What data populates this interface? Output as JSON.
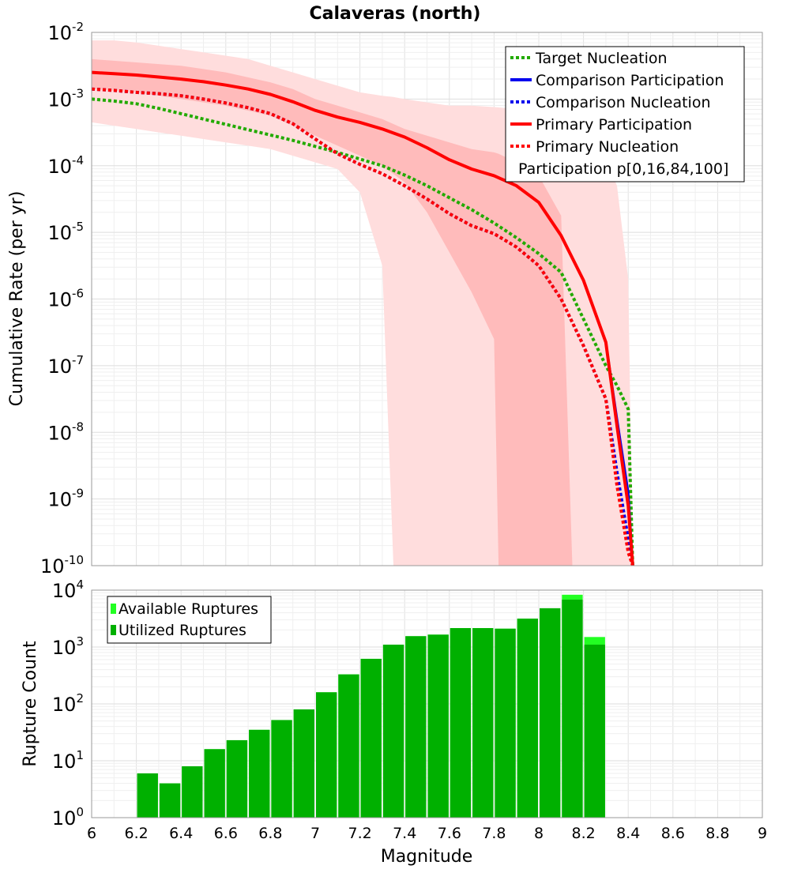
{
  "chart_data": [
    {
      "type": "line",
      "title": "Calaveras (north)",
      "xlabel": "",
      "ylabel": "Cumulative Rate (per yr)",
      "xlim": [
        6,
        9
      ],
      "ylim_exp": [
        -10,
        -2
      ],
      "y_tick_base": "10",
      "y_tick_exps": [
        "-2",
        "-3",
        "-4",
        "-5",
        "-6",
        "-7",
        "-8",
        "-9",
        "-10"
      ],
      "y_tick_values": [
        -2,
        -3,
        -4,
        -5,
        -6,
        -7,
        -8,
        -9,
        -10
      ],
      "grid": true,
      "legend_position": "top-right",
      "bands": [
        {
          "name": "Participation p[0,100]",
          "color": "#ffdddd",
          "x": [
            6.0,
            6.1,
            6.2,
            6.3,
            6.4,
            6.5,
            6.6,
            6.7,
            6.8,
            6.9,
            7.0,
            7.1,
            7.2,
            7.3,
            7.35,
            7.4,
            7.5,
            7.6,
            7.7,
            7.8,
            7.9,
            8.0,
            8.1,
            8.2,
            8.3,
            8.35,
            8.4,
            8.42
          ],
          "upper": [
            -2.12,
            -2.12,
            -2.15,
            -2.2,
            -2.25,
            -2.3,
            -2.35,
            -2.4,
            -2.5,
            -2.6,
            -2.7,
            -2.8,
            -2.9,
            -2.95,
            -2.97,
            -3.0,
            -3.05,
            -3.1,
            -3.1,
            -3.12,
            -3.15,
            -3.2,
            -3.4,
            -3.5,
            -3.9,
            -4.3,
            -5.7,
            -10
          ],
          "lower": [
            -3.35,
            -3.4,
            -3.45,
            -3.5,
            -3.55,
            -3.6,
            -3.65,
            -3.7,
            -3.75,
            -3.85,
            -3.95,
            -4.05,
            -4.4,
            -5.5,
            -10,
            -10,
            -10,
            -10,
            -10,
            -10,
            -10,
            -10,
            -10,
            -10,
            -10,
            -10,
            -10,
            -10
          ]
        },
        {
          "name": "Participation p[16,84]",
          "color": "#ffbbbb",
          "x": [
            6.0,
            6.2,
            6.4,
            6.6,
            6.8,
            6.9,
            7.0,
            7.1,
            7.2,
            7.3,
            7.4,
            7.5,
            7.6,
            7.7,
            7.8,
            7.82,
            7.9,
            8.0,
            8.1,
            8.15
          ],
          "upper": [
            -2.4,
            -2.45,
            -2.5,
            -2.6,
            -2.75,
            -2.85,
            -3.0,
            -3.1,
            -3.2,
            -3.3,
            -3.45,
            -3.55,
            -3.65,
            -3.75,
            -3.8,
            -3.82,
            -3.95,
            -4.15,
            -4.75,
            -10
          ],
          "lower": [
            -2.85,
            -2.9,
            -3.0,
            -3.1,
            -3.25,
            -3.4,
            -3.55,
            -3.7,
            -3.85,
            -4.0,
            -4.25,
            -4.7,
            -5.3,
            -5.9,
            -6.6,
            -10,
            -10,
            -10,
            -10,
            -10
          ]
        }
      ],
      "series": [
        {
          "name": "Target Nucleation",
          "color": "#22aa00",
          "dash": "dotted",
          "width": 4,
          "x": [
            6.0,
            6.1,
            6.2,
            6.3,
            6.4,
            6.5,
            6.6,
            6.7,
            6.8,
            6.9,
            7.0,
            7.1,
            7.2,
            7.3,
            7.4,
            7.5,
            7.6,
            7.7,
            7.8,
            7.9,
            8.0,
            8.1,
            8.2,
            8.3,
            8.35,
            8.4,
            8.42
          ],
          "y": [
            -3.0,
            -3.03,
            -3.07,
            -3.14,
            -3.22,
            -3.3,
            -3.38,
            -3.46,
            -3.54,
            -3.62,
            -3.71,
            -3.8,
            -3.9,
            -4.0,
            -4.14,
            -4.3,
            -4.48,
            -4.66,
            -4.86,
            -5.08,
            -5.32,
            -5.6,
            -6.3,
            -7.0,
            -7.3,
            -7.65,
            -10
          ]
        },
        {
          "name": "Comparison Participation",
          "color": "#0000ee",
          "dash": "solid",
          "width": 3,
          "x": [
            6.0,
            6.1,
            6.2,
            6.3,
            6.4,
            6.5,
            6.6,
            6.7,
            6.8,
            6.9,
            7.0,
            7.1,
            7.2,
            7.3,
            7.4,
            7.5,
            7.6,
            7.7,
            7.8,
            7.9,
            8.0,
            8.1,
            8.2,
            8.3,
            8.35,
            8.4,
            8.42
          ],
          "y": [
            -2.6,
            -2.62,
            -2.64,
            -2.67,
            -2.7,
            -2.74,
            -2.79,
            -2.85,
            -2.93,
            -3.04,
            -3.17,
            -3.27,
            -3.35,
            -3.45,
            -3.57,
            -3.73,
            -3.91,
            -4.05,
            -4.15,
            -4.3,
            -4.55,
            -5.05,
            -5.72,
            -6.65,
            -7.8,
            -8.9,
            -10
          ]
        },
        {
          "name": "Comparison Nucleation",
          "color": "#0000ee",
          "dash": "dotted",
          "width": 4,
          "x": [
            6.0,
            6.1,
            6.2,
            6.3,
            6.4,
            6.5,
            6.6,
            6.7,
            6.8,
            6.9,
            7.0,
            7.1,
            7.2,
            7.3,
            7.4,
            7.5,
            7.6,
            7.7,
            7.8,
            7.9,
            8.0,
            8.1,
            8.2,
            8.3,
            8.35,
            8.4,
            8.42
          ],
          "y": [
            -2.85,
            -2.87,
            -2.9,
            -2.92,
            -2.95,
            -3.0,
            -3.06,
            -3.13,
            -3.22,
            -3.37,
            -3.6,
            -3.82,
            -3.98,
            -4.12,
            -4.3,
            -4.5,
            -4.72,
            -4.9,
            -5.02,
            -5.22,
            -5.5,
            -6.0,
            -6.7,
            -7.5,
            -8.6,
            -9.6,
            -10
          ]
        },
        {
          "name": "Primary Participation",
          "color": "#ff0000",
          "dash": "solid",
          "width": 4,
          "x": [
            6.0,
            6.1,
            6.2,
            6.3,
            6.4,
            6.5,
            6.6,
            6.7,
            6.8,
            6.9,
            7.0,
            7.1,
            7.2,
            7.3,
            7.4,
            7.5,
            7.6,
            7.7,
            7.8,
            7.9,
            8.0,
            8.1,
            8.2,
            8.3,
            8.35,
            8.4,
            8.42
          ],
          "y": [
            -2.6,
            -2.62,
            -2.64,
            -2.67,
            -2.7,
            -2.74,
            -2.79,
            -2.85,
            -2.93,
            -3.04,
            -3.17,
            -3.27,
            -3.35,
            -3.45,
            -3.57,
            -3.73,
            -3.91,
            -4.05,
            -4.15,
            -4.3,
            -4.55,
            -5.05,
            -5.72,
            -6.65,
            -7.9,
            -9.1,
            -10
          ]
        },
        {
          "name": "Primary Nucleation",
          "color": "#ff0000",
          "dash": "dotted",
          "width": 4,
          "x": [
            6.0,
            6.1,
            6.2,
            6.3,
            6.4,
            6.5,
            6.6,
            6.7,
            6.8,
            6.9,
            7.0,
            7.1,
            7.2,
            7.3,
            7.4,
            7.5,
            7.6,
            7.7,
            7.8,
            7.9,
            8.0,
            8.1,
            8.2,
            8.3,
            8.35,
            8.4,
            8.42
          ],
          "y": [
            -2.85,
            -2.87,
            -2.9,
            -2.92,
            -2.95,
            -3.0,
            -3.06,
            -3.13,
            -3.22,
            -3.37,
            -3.6,
            -3.82,
            -3.98,
            -4.12,
            -4.3,
            -4.5,
            -4.72,
            -4.9,
            -5.02,
            -5.22,
            -5.5,
            -6.0,
            -6.7,
            -7.5,
            -8.8,
            -9.8,
            -10
          ]
        }
      ],
      "legend": [
        {
          "label": "Target Nucleation",
          "color": "#22aa00",
          "dash": "dotted"
        },
        {
          "label": "Comparison Participation",
          "color": "#0000ee",
          "dash": "solid"
        },
        {
          "label": "Comparison Nucleation",
          "color": "#0000ee",
          "dash": "dotted"
        },
        {
          "label": "Primary Participation",
          "color": "#ff0000",
          "dash": "solid"
        },
        {
          "label": "Primary Nucleation",
          "color": "#ff0000",
          "dash": "dotted"
        },
        {
          "label": "Participation p[0,16,84,100]",
          "color": "#ffdddd",
          "dash": "none"
        }
      ]
    },
    {
      "type": "bar",
      "title": "",
      "xlabel": "Magnitude",
      "ylabel": "Rupture Count",
      "xlim": [
        6,
        9
      ],
      "ylim_exp": [
        0,
        4
      ],
      "y_tick_base": "10",
      "y_tick_exps": [
        "4",
        "3",
        "2",
        "1",
        "0"
      ],
      "y_tick_values": [
        4,
        3,
        2,
        1,
        0
      ],
      "x_ticks": [
        "6",
        "6.2",
        "6.4",
        "6.6",
        "6.8",
        "7",
        "7.2",
        "7.4",
        "7.6",
        "7.8",
        "8",
        "8.2",
        "8.4",
        "8.6",
        "8.8",
        "9"
      ],
      "x_tick_values": [
        6,
        6.2,
        6.4,
        6.6,
        6.8,
        7,
        7.2,
        7.4,
        7.6,
        7.8,
        8,
        8.2,
        8.4,
        8.6,
        8.8,
        9
      ],
      "bar_width": 0.1,
      "grid": true,
      "legend_position": "top-left",
      "categories": [
        6.25,
        6.35,
        6.45,
        6.55,
        6.65,
        6.75,
        6.85,
        6.95,
        7.05,
        7.15,
        7.25,
        7.35,
        7.45,
        7.55,
        7.65,
        7.75,
        7.85,
        7.95,
        8.05,
        8.15,
        8.25
      ],
      "series": [
        {
          "name": "Available Ruptures",
          "color": "#22ff22",
          "values": [
            6,
            4,
            8,
            16,
            23,
            35,
            52,
            80,
            160,
            330,
            620,
            1100,
            1550,
            1650,
            2150,
            2150,
            2100,
            3150,
            4800,
            8300,
            1500
          ]
        },
        {
          "name": "Utilized Ruptures",
          "color": "#00b000",
          "values": [
            6,
            4,
            8,
            16,
            23,
            35,
            52,
            80,
            160,
            330,
            620,
            1100,
            1550,
            1650,
            2150,
            2150,
            2100,
            3150,
            4800,
            6800,
            1100
          ]
        }
      ],
      "legend": [
        {
          "label": "Available Ruptures",
          "color": "#22ff22"
        },
        {
          "label": "Utilized Ruptures",
          "color": "#00b000"
        }
      ]
    }
  ]
}
